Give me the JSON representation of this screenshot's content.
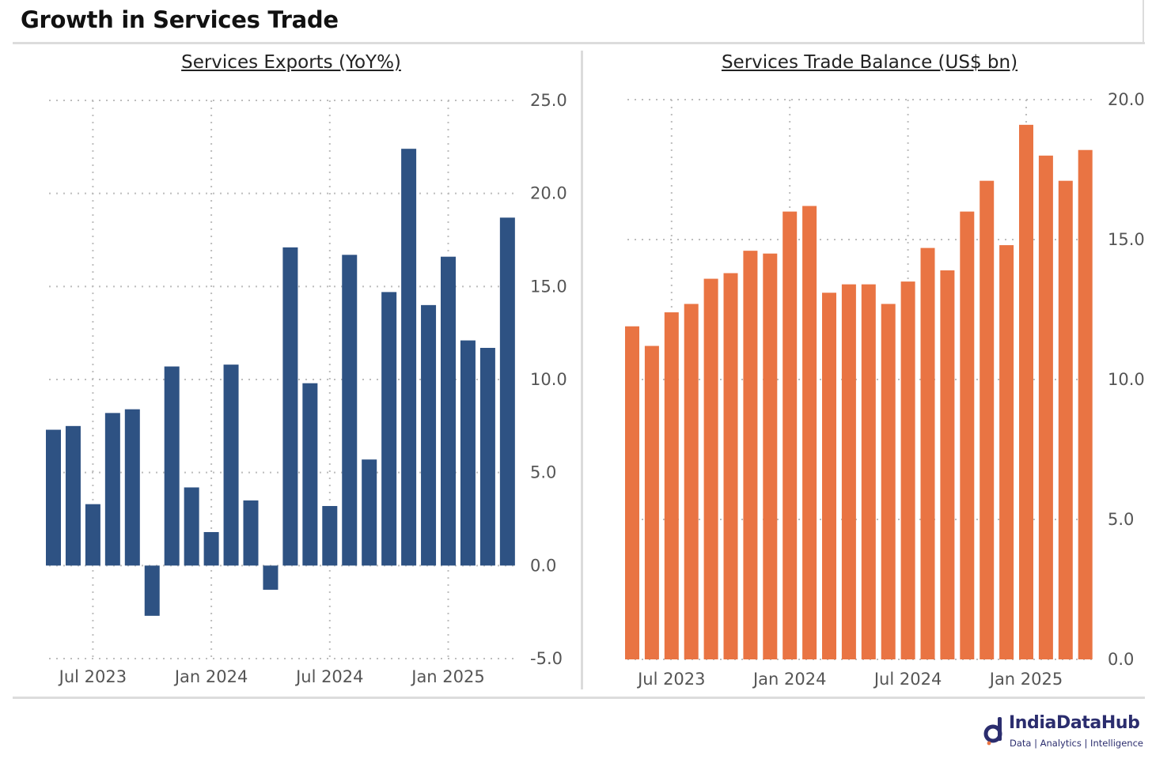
{
  "page": {
    "title": "Growth in Services Trade"
  },
  "brand": {
    "name": "IndiaDataHub",
    "tagline": "Data | Analytics | Intelligence",
    "color": "#2b2d6e"
  },
  "chart_data": [
    {
      "type": "bar",
      "title": "Services Exports (YoY%)",
      "color": "#2e5283",
      "categories": [
        "May 2023",
        "Jun 2023",
        "Jul 2023",
        "Aug 2023",
        "Sep 2023",
        "Oct 2023",
        "Nov 2023",
        "Dec 2023",
        "Jan 2024",
        "Feb 2024",
        "Mar 2024",
        "Apr 2024",
        "May 2024",
        "Jun 2024",
        "Jul 2024",
        "Aug 2024",
        "Sep 2024",
        "Oct 2024",
        "Nov 2024",
        "Dec 2024",
        "Jan 2025",
        "Feb 2025",
        "Mar 2025",
        "Apr 2025"
      ],
      "values": [
        7.3,
        7.5,
        3.3,
        8.2,
        8.4,
        -2.7,
        10.7,
        4.2,
        1.8,
        10.8,
        3.5,
        -1.3,
        17.1,
        9.8,
        3.2,
        16.7,
        5.7,
        14.7,
        22.4,
        14.0,
        16.6,
        12.1,
        11.7,
        18.7
      ],
      "ylim": [
        -5,
        25
      ],
      "yticks": [
        "-5.0",
        "0.0",
        "5.0",
        "10.0",
        "15.0",
        "20.0",
        "25.0"
      ],
      "ytick_values": [
        -5,
        0,
        5,
        10,
        15,
        20,
        25
      ],
      "xticks": [
        "Jul 2023",
        "Jan 2024",
        "Jul 2024",
        "Jan 2025"
      ],
      "xtick_index": [
        2,
        8,
        14,
        20
      ],
      "grid": true,
      "yaxis_side": "right"
    },
    {
      "type": "bar",
      "title": "Services Trade Balance (US$ bn)",
      "color": "#e97443",
      "categories": [
        "May 2023",
        "Jun 2023",
        "Jul 2023",
        "Aug 2023",
        "Sep 2023",
        "Oct 2023",
        "Nov 2023",
        "Dec 2023",
        "Jan 2024",
        "Feb 2024",
        "Mar 2024",
        "Apr 2024",
        "May 2024",
        "Jun 2024",
        "Jul 2024",
        "Aug 2024",
        "Sep 2024",
        "Oct 2024",
        "Nov 2024",
        "Dec 2024",
        "Jan 2025",
        "Feb 2025",
        "Mar 2025",
        "Apr 2025"
      ],
      "values": [
        11.9,
        11.2,
        12.4,
        12.7,
        13.6,
        13.8,
        14.6,
        14.5,
        16.0,
        16.2,
        13.1,
        13.4,
        13.4,
        12.7,
        13.5,
        14.7,
        13.9,
        16.0,
        17.1,
        14.8,
        19.1,
        18.0,
        17.1,
        18.2
      ],
      "ylim": [
        0,
        20
      ],
      "yticks": [
        "0.0",
        "5.0",
        "10.0",
        "15.0",
        "20.0"
      ],
      "ytick_values": [
        0,
        5,
        10,
        15,
        20
      ],
      "xticks": [
        "Jul 2023",
        "Jan 2024",
        "Jul 2024",
        "Jan 2025"
      ],
      "xtick_index": [
        2,
        8,
        14,
        20
      ],
      "grid": true,
      "yaxis_side": "right"
    }
  ]
}
